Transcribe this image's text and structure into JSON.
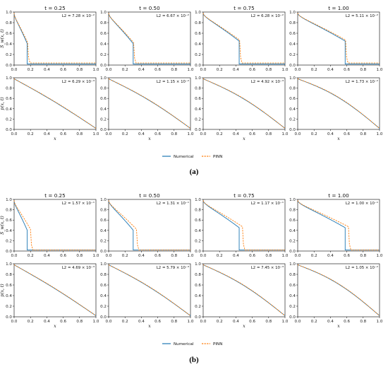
{
  "colors": {
    "numerical": "#1f77b4",
    "pinn": "#ff7f0e"
  },
  "legend": {
    "numerical": "Numerical",
    "pinn": "PINN"
  },
  "axes_text": {
    "row_top_ylabel": "S_w(x, t)",
    "row_bottom_ylabel": "p(x, t)",
    "xlabel": "x",
    "x_ticks": [
      "0.0",
      "0.2",
      "0.4",
      "0.6",
      "0.8",
      "1.0"
    ],
    "y_ticks": [
      "0.0",
      "0.2",
      "0.4",
      "0.6",
      "0.8",
      "1.0"
    ]
  },
  "panels": [
    {
      "caption": "(a)",
      "times": [
        "t = 0.25",
        "t = 0.50",
        "t = 0.75",
        "t = 1.00"
      ],
      "sat_l2": [
        "L2 = 7.28 × 10⁻²",
        "L2 = 6.67 × 10⁻²",
        "L2 = 6.28 × 10⁻²",
        "L2 = 5.11 × 10⁻²"
      ],
      "press_l2": [
        "L2 = 6.29 × 10⁻³",
        "L2 = 1.15 × 10⁻²",
        "L2 = 4.92 × 10⁻³",
        "L2 = 1.73 × 10⁻²"
      ]
    },
    {
      "caption": "(b)",
      "times": [
        "t = 0.25",
        "t = 0.50",
        "t = 0.75",
        "t = 1.00"
      ],
      "sat_l2": [
        "L2 = 1.57 × 10⁻¹",
        "L2 = 1.31 × 10⁻¹",
        "L2 = 1.17 × 10⁻¹",
        "L2 = 1.00 × 10⁻¹"
      ],
      "press_l2": [
        "L2 = 4.69 × 10⁻³",
        "L2 = 5.79 × 10⁻³",
        "L2 = 7.45 × 10⁻³",
        "L2 = 1.05 × 10⁻²"
      ]
    }
  ],
  "chart_data": {
    "type": "line",
    "xlim": [
      0,
      1
    ],
    "ylim": [
      0,
      1
    ],
    "front_positions": {
      "a": {
        "numerical": [
          0.16,
          0.3,
          0.44,
          0.58
        ],
        "pinn": [
          0.165,
          0.305,
          0.445,
          0.585
        ]
      },
      "b": {
        "numerical": [
          0.16,
          0.3,
          0.44,
          0.58
        ],
        "pinn": [
          0.2,
          0.34,
          0.48,
          0.62
        ]
      }
    },
    "front_top_saturation": [
      0.4,
      0.4,
      0.45,
      0.45
    ],
    "sat_background": {
      "a": {
        "numerical": 0.0,
        "pinn": 0.02
      },
      "b": {
        "numerical": 0.0,
        "pinn": 0.0
      }
    },
    "pressure": "linear from 1.0 at x=0 to 0.0 at x=1"
  }
}
